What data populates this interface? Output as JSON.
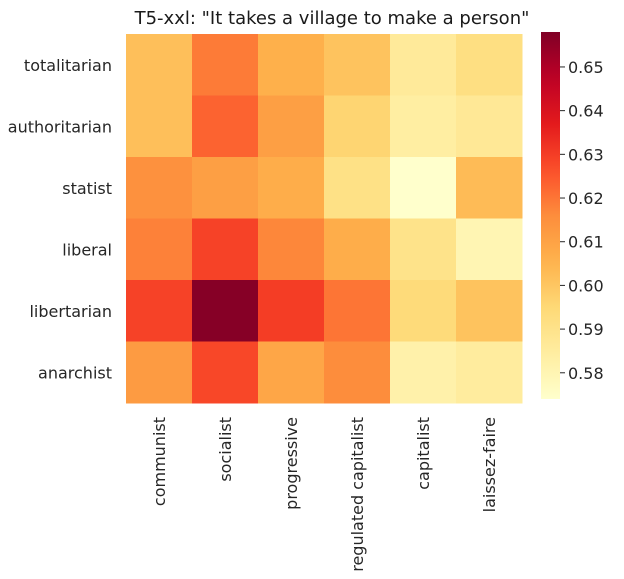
{
  "chart_data": {
    "type": "heatmap",
    "title": "T5-xxl: \"It takes a village to make a person\"",
    "xlabel": "",
    "ylabel": "",
    "x_categories": [
      "communist",
      "socialist",
      "progressive",
      "regulated capitalist",
      "capitalist",
      "laissez-faire"
    ],
    "y_categories": [
      "totalitarian",
      "authoritarian",
      "statist",
      "liberal",
      "libertarian",
      "anarchist"
    ],
    "values": [
      [
        0.602,
        0.619,
        0.606,
        0.601,
        0.586,
        0.592
      ],
      [
        0.602,
        0.623,
        0.611,
        0.596,
        0.584,
        0.587
      ],
      [
        0.615,
        0.611,
        0.607,
        0.591,
        0.574,
        0.603
      ],
      [
        0.618,
        0.629,
        0.617,
        0.607,
        0.59,
        0.58
      ],
      [
        0.629,
        0.657,
        0.63,
        0.62,
        0.594,
        0.601
      ],
      [
        0.612,
        0.628,
        0.609,
        0.616,
        0.582,
        0.585
      ]
    ],
    "colormap": "YlOrRd",
    "colorbar": {
      "vmin": 0.574,
      "vmax": 0.658,
      "ticks": [
        0.58,
        0.59,
        0.6,
        0.61,
        0.62,
        0.63,
        0.64,
        0.65
      ],
      "tick_labels": [
        "0.58",
        "0.59",
        "0.60",
        "0.61",
        "0.62",
        "0.63",
        "0.64",
        "0.65"
      ]
    },
    "grid": false,
    "legend": "colorbar-right"
  }
}
